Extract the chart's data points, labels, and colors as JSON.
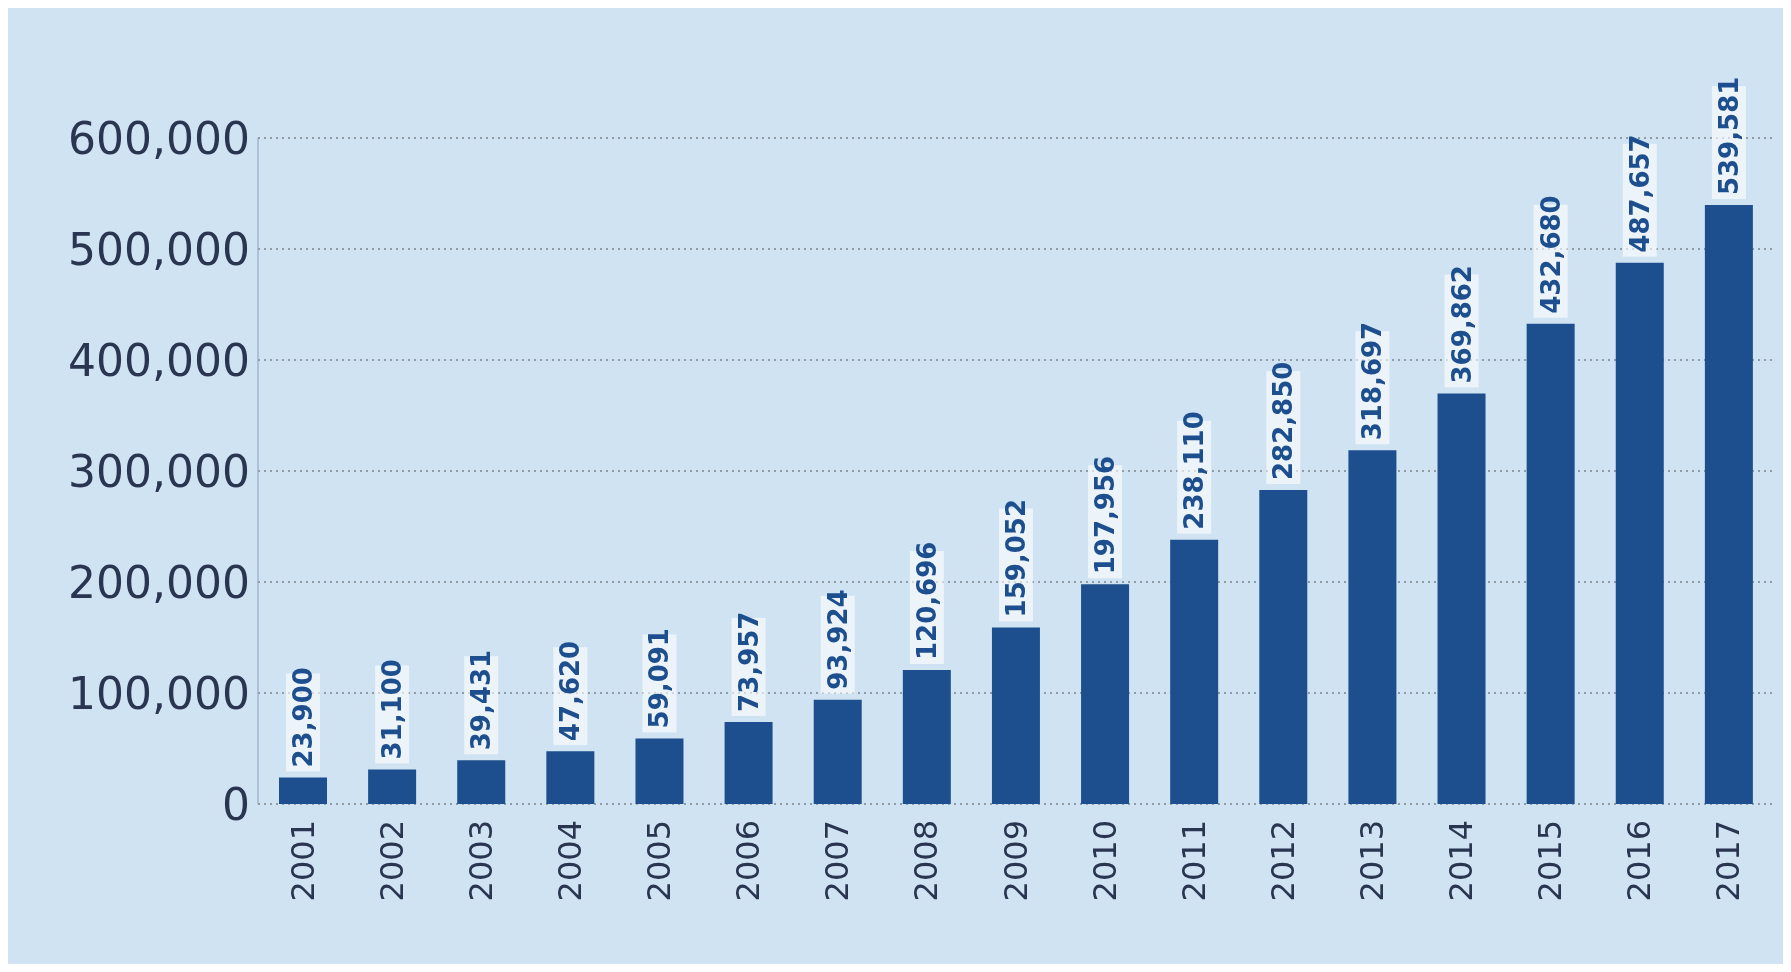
{
  "chart_data": {
    "type": "bar",
    "categories": [
      "2001",
      "2002",
      "2003",
      "2004",
      "2005",
      "2006",
      "2007",
      "2008",
      "2009",
      "2010",
      "2011",
      "2012",
      "2013",
      "2014",
      "2015",
      "2016",
      "2017"
    ],
    "values": [
      23900,
      31100,
      39431,
      47620,
      59091,
      73957,
      93924,
      120696,
      159052,
      197956,
      238110,
      282850,
      318697,
      369862,
      432680,
      487657,
      539581
    ],
    "value_labels": [
      "23,900",
      "31,100",
      "39,431",
      "47,620",
      "59,091",
      "73,957",
      "93,924",
      "120,696",
      "159,052",
      "197,956",
      "238,110",
      "282,850",
      "318,697",
      "369,862",
      "432,680",
      "487,657",
      "539,581"
    ],
    "color": "#1d4f8f",
    "ylim": [
      0,
      600000
    ],
    "yticks": [
      0,
      {
        "value": 100000,
        "label": "100,000"
      },
      {
        "value": 200000,
        "label": "200,000"
      },
      {
        "value": 300000,
        "label": "300,000"
      },
      {
        "value": 400000,
        "label": "400,000"
      },
      {
        "value": 500000,
        "label": "500,000"
      },
      {
        "value": 600000,
        "label": "600,000"
      }
    ],
    "grid": "y"
  }
}
